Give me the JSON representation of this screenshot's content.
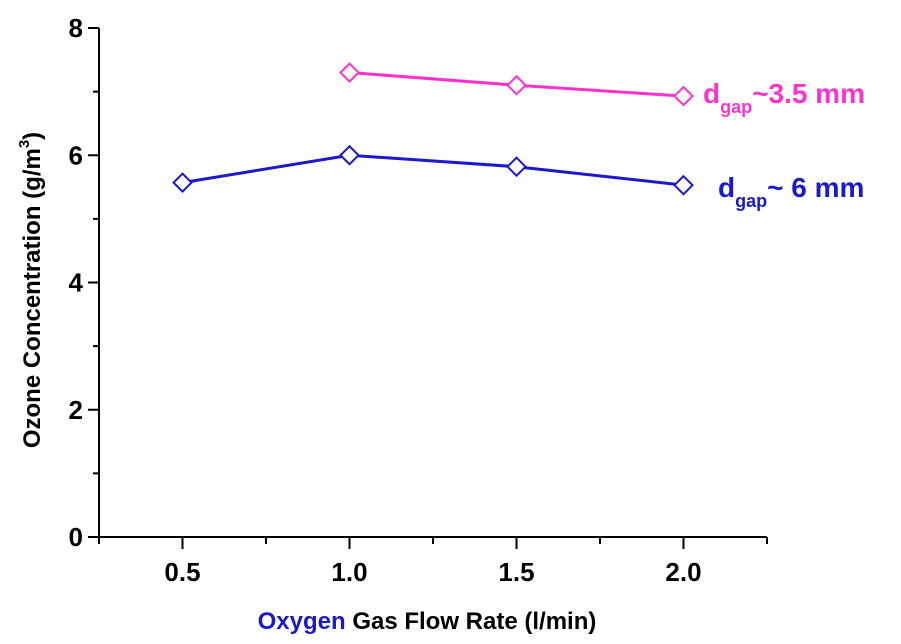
{
  "chart_data": {
    "type": "line",
    "x": [
      0.5,
      1.0,
      1.5,
      2.0
    ],
    "x_tick_labels": [
      "0.5",
      "1.0",
      "1.5",
      "2.0"
    ],
    "y_tick_labels": [
      "0",
      "2",
      "4",
      "6",
      "8"
    ],
    "xlim": [
      0.25,
      2.25
    ],
    "ylim": [
      0,
      8
    ],
    "xlabel": {
      "highlight": "Oxygen",
      "rest": " Gas Flow Rate (l/min)"
    },
    "ylabel": {
      "main": "Ozone Concentration (g/m",
      "sup": "3",
      "close": ")"
    },
    "grid": false,
    "series": [
      {
        "name": {
          "main": "d",
          "sub": "gap",
          "rest": "~3.5 mm"
        },
        "color": "#ff33cc",
        "x": [
          1.0,
          1.5,
          2.0
        ],
        "values": [
          7.3,
          7.1,
          6.93
        ]
      },
      {
        "name": {
          "main": "d",
          "sub": "gap",
          "rest": "~ 6 mm"
        },
        "color": "#1a1acc",
        "x": [
          0.5,
          1.0,
          1.5,
          2.0
        ],
        "values": [
          5.57,
          6.0,
          5.82,
          5.53
        ]
      }
    ],
    "axis_highlight_color": "#1a1acc"
  }
}
